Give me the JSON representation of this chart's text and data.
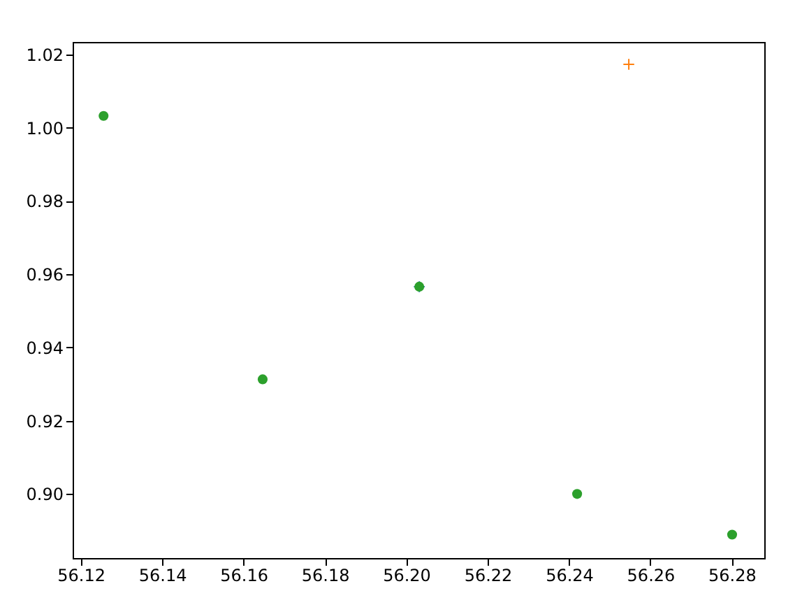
{
  "chart_data": {
    "type": "scatter",
    "grid": false,
    "xlim": [
      56.118,
      56.288
    ],
    "xticks": [
      56.12,
      56.14,
      56.16,
      56.18,
      {
        "value": 56.2,
        "label": "56.20"
      },
      56.22,
      56.24,
      56.26,
      56.28
    ],
    "ylim": [
      0.8825,
      1.0234
    ],
    "yticks": [
      {
        "value": 0.9,
        "label": "0.90"
      },
      0.92,
      0.94,
      0.96,
      0.98,
      {
        "value": 1.0,
        "label": "1.00"
      },
      1.02
    ],
    "series": [
      {
        "color": "#1f77b4",
        "marker": "cross",
        "x": [
          56.2032
        ],
        "values": [
          0.9566
        ]
      },
      {
        "color": "#ff7f0e",
        "marker": "cross",
        "x": [
          56.2547
        ],
        "values": [
          1.0173
        ]
      },
      {
        "color": "#2ca02c",
        "marker": "circle",
        "x": [
          56.1256,
          56.1647,
          56.2032,
          56.242,
          56.2801
        ],
        "values": [
          1.0032,
          0.9313,
          0.9566,
          0.9,
          0.8889
        ]
      }
    ]
  }
}
